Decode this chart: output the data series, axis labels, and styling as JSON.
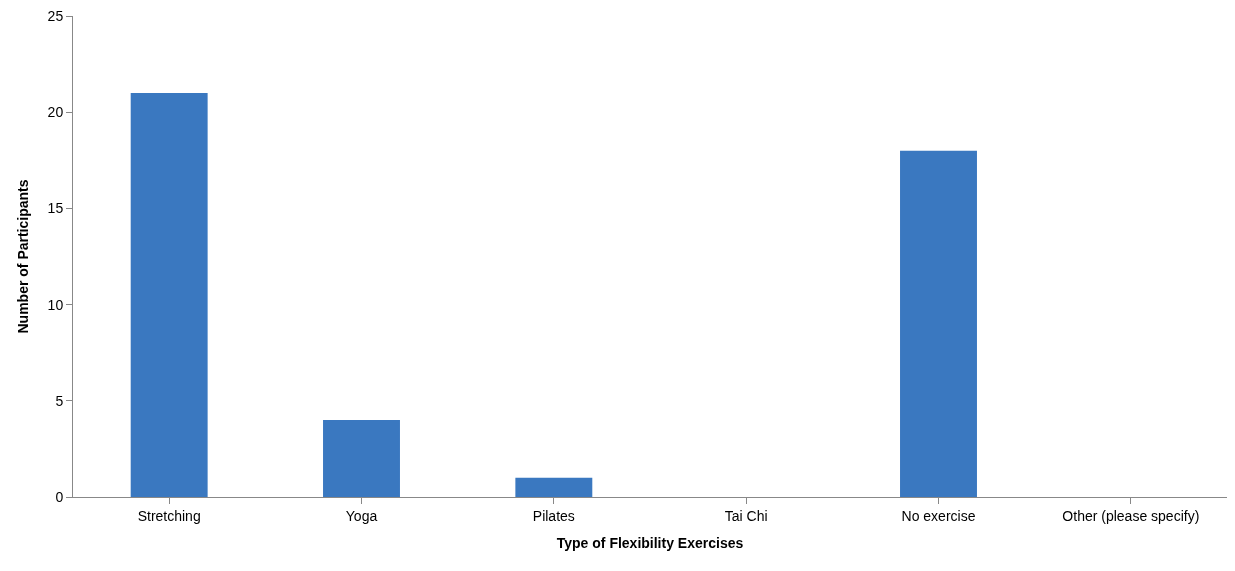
{
  "chart_data": {
    "type": "bar",
    "xlabel": "Type of Flexibility Exercises",
    "ylabel": "Number of Participants",
    "categories": [
      "Stretching",
      "Yoga",
      "Pilates",
      "Tai Chi",
      "No exercise",
      "Other (please specify)"
    ],
    "values": [
      21,
      4,
      1,
      0,
      18,
      0
    ],
    "color": "#3a78c0",
    "ylim": [
      0,
      25
    ],
    "yticks": [
      0,
      5,
      10,
      15,
      20,
      25
    ]
  }
}
